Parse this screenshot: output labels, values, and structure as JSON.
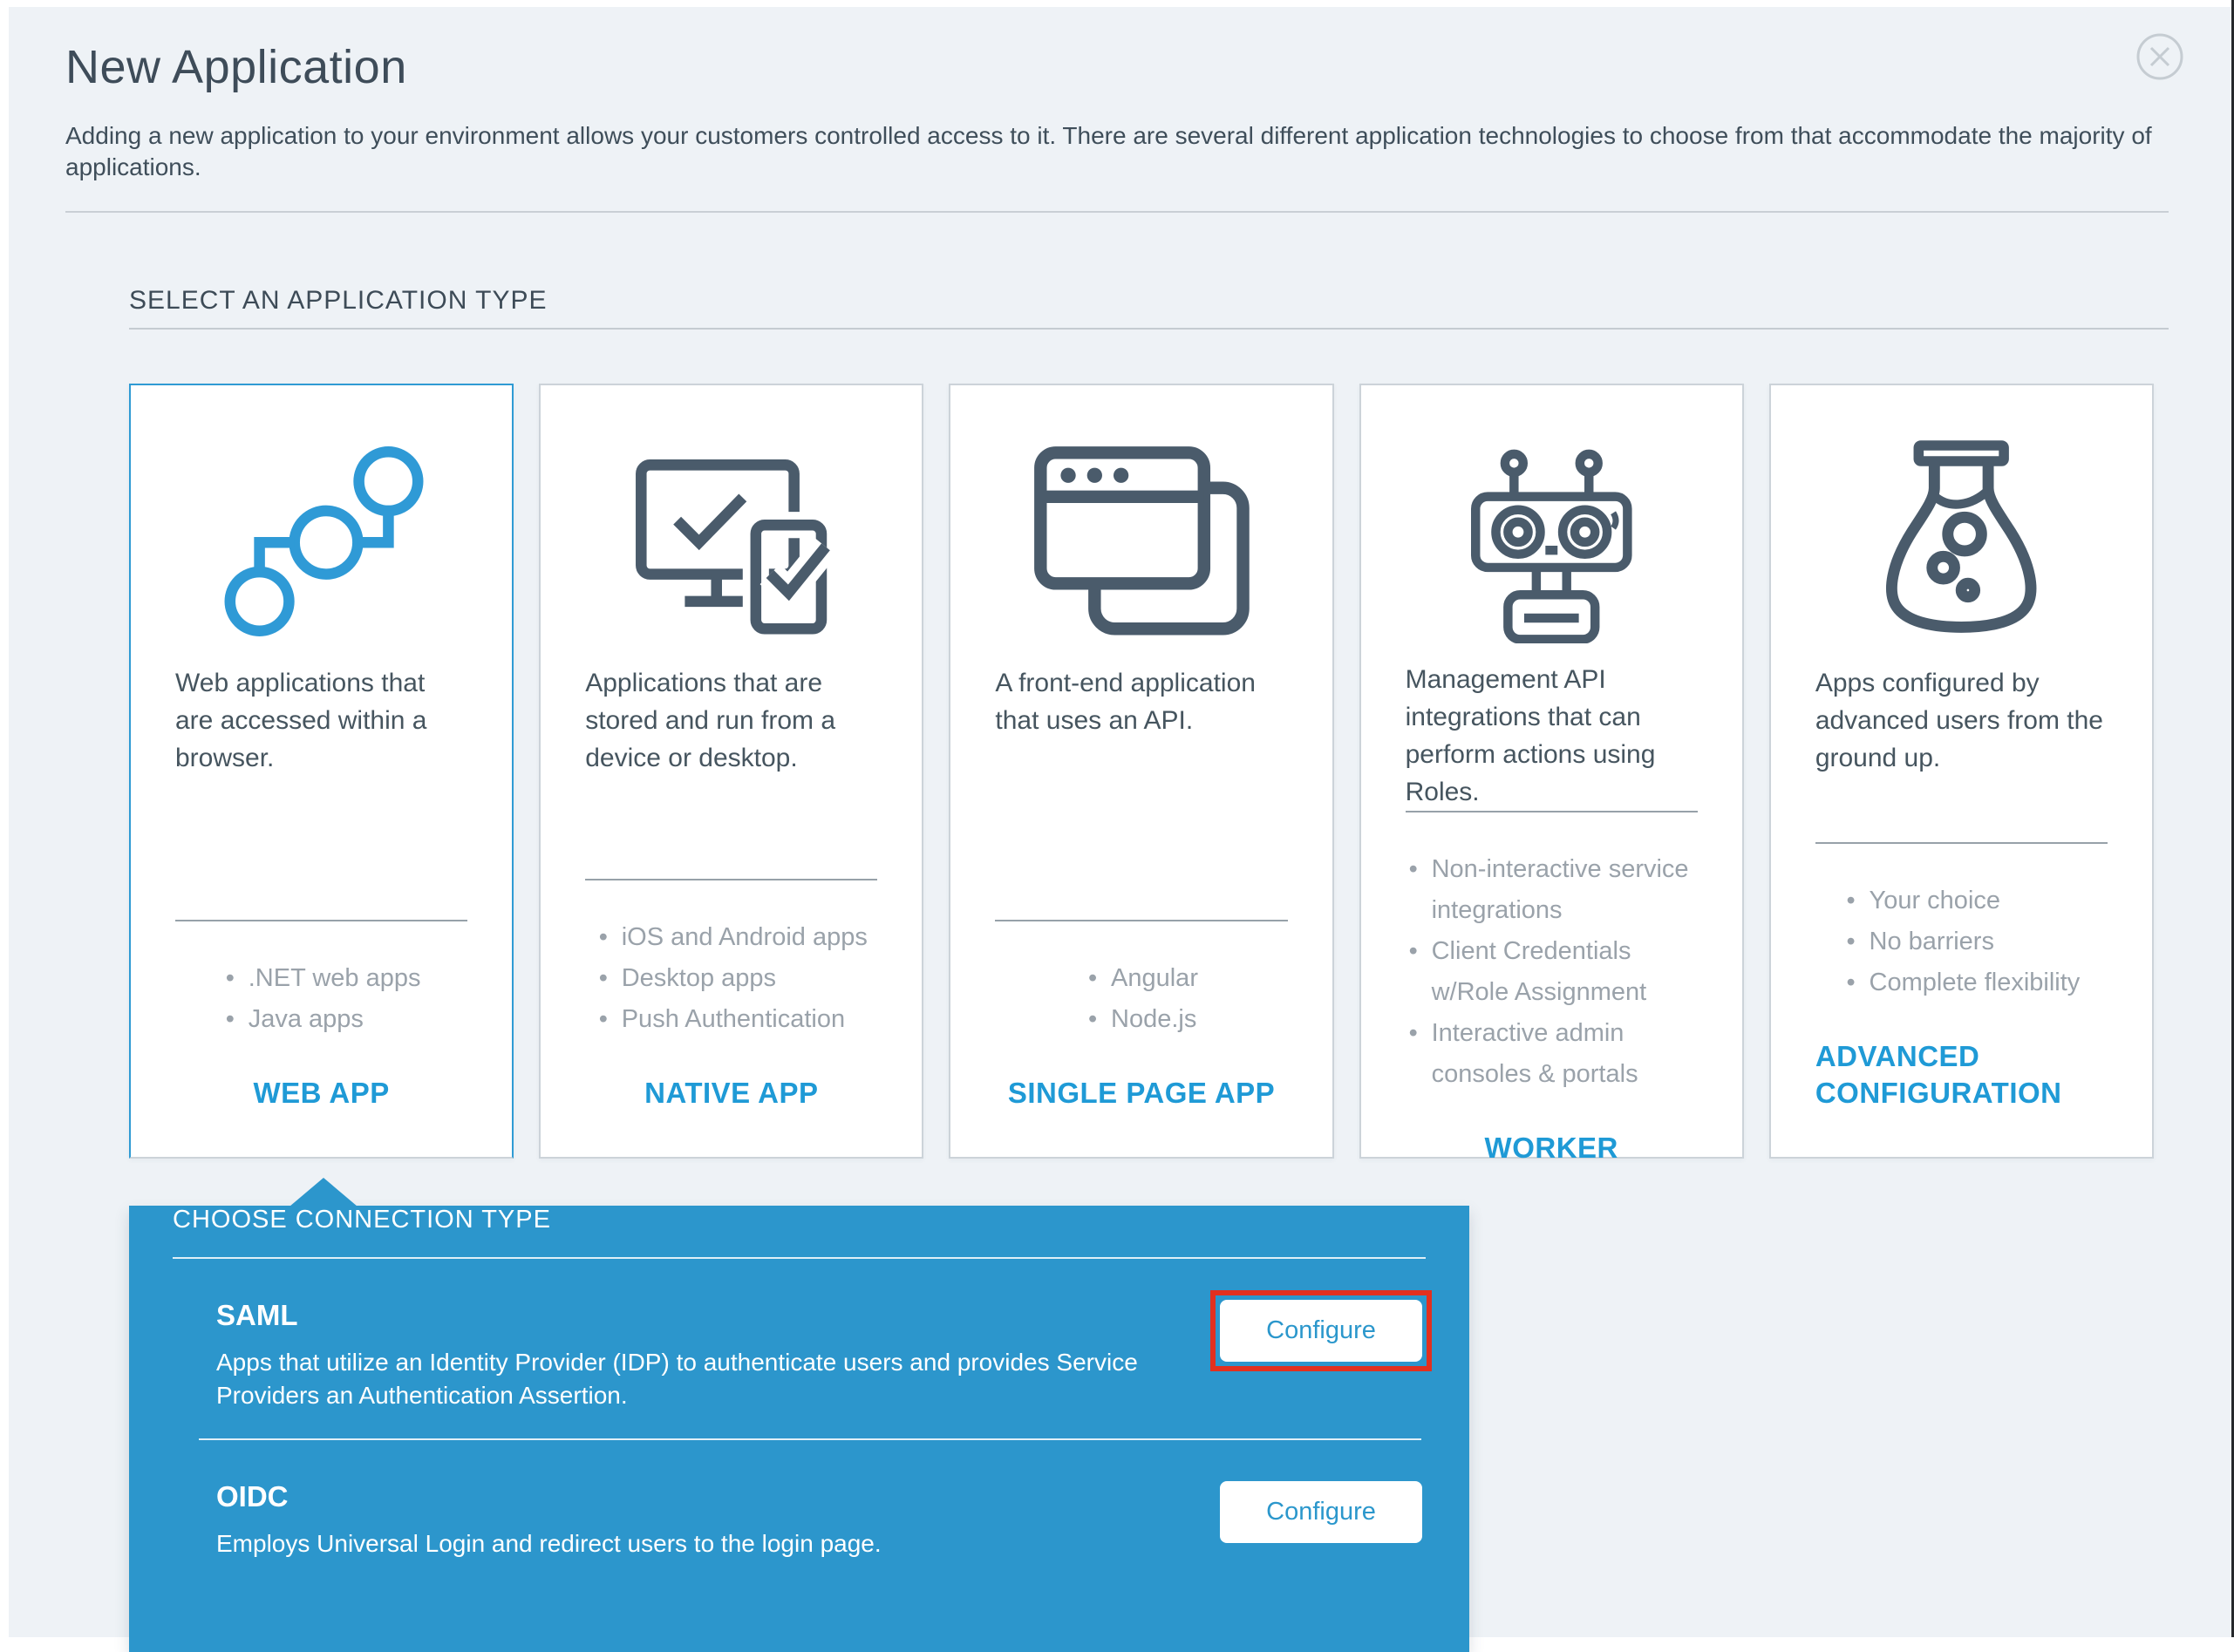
{
  "dialog": {
    "title": "New Application",
    "description": "Adding a new application to your environment allows your customers controlled access to it. There are several different application technologies to choose from that accommodate the majority of applications.",
    "close_icon": "circle-x-close-icon"
  },
  "section": {
    "heading": "SELECT AN APPLICATION TYPE"
  },
  "app_types": [
    {
      "id": "web-app",
      "icon": "connected-nodes-icon",
      "description": "Web applications that are accessed within a browser.",
      "bullets": [
        ".NET web apps",
        "Java apps"
      ],
      "label": "WEB APP",
      "selected": true
    },
    {
      "id": "native-app",
      "icon": "devices-check-icon",
      "description": "Applications that are stored and run from a device or desktop.",
      "bullets": [
        "iOS and Android apps",
        "Desktop apps",
        "Push Authentication"
      ],
      "label": "NATIVE APP",
      "selected": false
    },
    {
      "id": "single-page-app",
      "icon": "browser-windows-icon",
      "description": "A front-end application that uses an API.",
      "bullets": [
        "Angular",
        "Node.js"
      ],
      "label": "SINGLE PAGE APP",
      "selected": false
    },
    {
      "id": "worker",
      "icon": "robot-icon",
      "description": "Management API integrations that can perform actions using Roles.",
      "bullets": [
        "Non-interactive service integrations",
        "Client Credentials w/Role Assignment",
        "Interactive admin consoles & portals"
      ],
      "label": "WORKER",
      "selected": false
    },
    {
      "id": "advanced-configuration",
      "icon": "flask-icon",
      "description": "Apps configured by advanced users from the ground up.",
      "bullets": [
        "Your choice",
        "No barriers",
        "Complete flexibility"
      ],
      "label": "ADVANCED CONFIGURATION",
      "selected": false
    }
  ],
  "connection_panel": {
    "heading": "CHOOSE CONNECTION TYPE",
    "options": [
      {
        "name": "SAML",
        "description": "Apps that utilize an Identity Provider (IDP) to authenticate users and provides Service Providers an Authentication Assertion.",
        "button_label": "Configure",
        "highlighted": true
      },
      {
        "name": "OIDC",
        "description": "Employs Universal Login and redirect users to the login page.",
        "button_label": "Configure",
        "highlighted": false
      }
    ]
  },
  "colors": {
    "accent_blue": "#1f9ad6",
    "panel_blue": "#2c96cc",
    "icon_slate": "#4a5b6b",
    "annotation_red": "#e2301f",
    "background": "#eef2f6"
  }
}
